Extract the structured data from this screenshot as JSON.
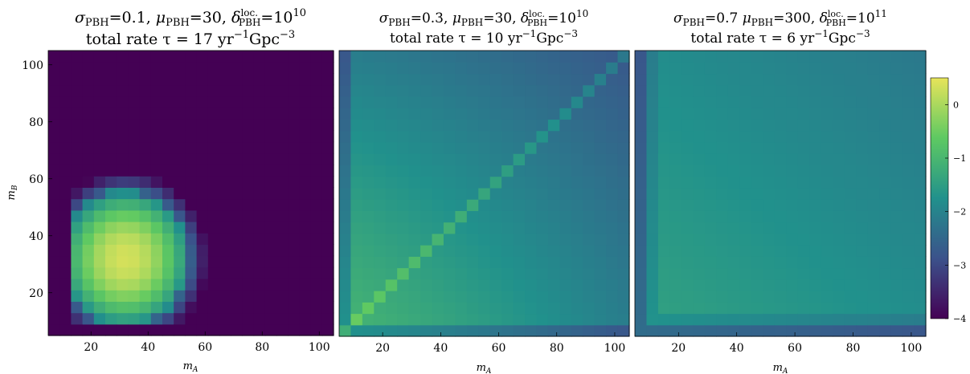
{
  "chart_data": [
    {
      "type": "heatmap",
      "title_line1": "σPBH=0.1, μPBH=30, δlocPBH=10^10",
      "title_line2": "total rate τ = 17 yr⁻¹Gpc⁻³",
      "title": {
        "sigma_value": "=0.1,",
        "mu_value": "=30,",
        "delta_value": "=10",
        "delta_exp": "10",
        "rate_value": "total rate τ = 17 yr",
        "rate_units": "Gpc"
      },
      "xlabel": "m_A",
      "ylabel": "m_B",
      "xlim": [
        5,
        105
      ],
      "ylim": [
        5,
        105
      ],
      "xticks": [
        20,
        40,
        60,
        80,
        100
      ],
      "yticks": [
        20,
        40,
        60,
        80,
        100
      ],
      "background_value": -4,
      "peak": {
        "x": 32,
        "y": 32,
        "value": 0.4
      },
      "notes": "log10 rate density concentrated around (30,30), zero elsewhere"
    },
    {
      "type": "heatmap",
      "title_line1": "σPBH=0.3, μPBH=30, δlocPBH=10^10",
      "title_line2": "total rate τ = 10 yr⁻¹Gpc⁻³",
      "title": {
        "sigma_value": "=0.3,",
        "mu_value": "=30,",
        "delta_value": "=10",
        "delta_exp": "10",
        "rate_value": "total rate τ = 10 yr",
        "rate_units": "Gpc"
      },
      "xlabel": "m_A",
      "xlim": [
        5,
        105
      ],
      "ylim": [
        5,
        105
      ],
      "xticks": [
        20,
        40,
        60,
        80,
        100
      ],
      "notes": "broad distribution with enhanced diagonal mA=mB"
    },
    {
      "type": "heatmap",
      "title_line1": "σPBH=0.7 μPBH=300, δlocPBH=10^11",
      "title_line2": "total rate τ = 6 yr⁻¹Gpc⁻³",
      "title": {
        "sigma_value": "=0.7",
        "mu_value": "=300,",
        "delta_value": "=10",
        "delta_exp": "11",
        "rate_value": "total rate τ = 6 yr",
        "rate_units": "Gpc"
      },
      "xlabel": "m_A",
      "xlim": [
        5,
        105
      ],
      "ylim": [
        5,
        105
      ],
      "xticks": [
        20,
        40,
        60,
        80,
        100
      ],
      "notes": "nearly flat distribution, dimmer along low-mass edges"
    }
  ],
  "colorbar": {
    "range": [
      -4,
      0.5
    ],
    "ticks": [
      0,
      -1,
      -2,
      -3,
      -4
    ],
    "tick_labels": [
      "0",
      "−1",
      "−2",
      "−3",
      "−4"
    ],
    "colormap": [
      "#440154",
      "#3b528b",
      "#21918c",
      "#5ec962",
      "#e7e45a"
    ]
  },
  "labels": {
    "sigma": "σ",
    "mu": "μ",
    "pbh": "PBH",
    "delta": "δ",
    "delta_sup": "loc.",
    "yr_exp": "−1",
    "gpc_exp": "−3"
  }
}
